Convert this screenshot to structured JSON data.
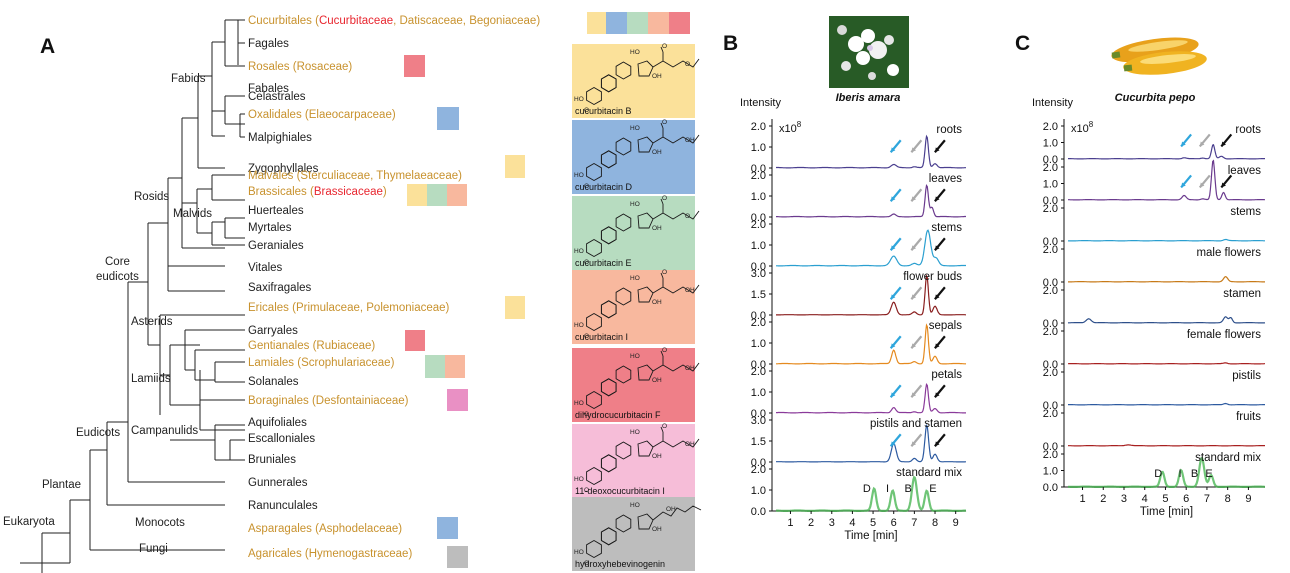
{
  "panels": {
    "a": "A",
    "b": "B",
    "c": "C"
  },
  "colors": {
    "order": "#c8922e",
    "family": "#e8262f",
    "tree": "#222222",
    "cuc_b": "#fbe19a",
    "cuc_d": "#8fb4de",
    "cuc_e": "#b7dcc0",
    "cuc_i": "#f8b89e",
    "dihydro_f": "#ef7f88",
    "deoxo_i": "#f6bdd8",
    "hebevinogenin": "#bdbdbd",
    "boraginales": "#e990c4",
    "blue_arrow": "#2fa6dc",
    "gray_arrow": "#aaaaaa",
    "black_arrow": "#111111"
  },
  "tree": {
    "orders": {
      "cucurbitales": "Cucurbitales",
      "fagales": "Fagales",
      "rosales": "Rosales",
      "fabales": "Fabales",
      "celastrales": "Celastrales",
      "oxalidales": "Oxalidales",
      "malpighiales": "Malpighiales",
      "zygophyllales": "Zygophyllales",
      "malvales": "Malvales",
      "brassicales": "Brassicales",
      "huerteales": "Huerteales",
      "myrtales": "Myrtales",
      "geraniales": "Geraniales",
      "vitales": "Vitales",
      "saxifragales": "Saxifragales",
      "ericales": "Ericales",
      "garryales": "Garryales",
      "gentianales": "Gentianales",
      "lamiales": "Lamiales",
      "solanales": "Solanales",
      "boraginales": "Boraginales",
      "aquifoliales": "Aquifoliales",
      "escalloniales": "Escalloniales",
      "bruniales": "Bruniales",
      "gunnerales": "Gunnerales",
      "ranunculales": "Ranunculales",
      "asparagales": "Asparagales",
      "agaricales": "Agaricales"
    },
    "families": {
      "cucurbitaceae": "Cucurbitaceae",
      "datiscaceae": "Datiscaceae",
      "begoniaceae": "Begoniaceae",
      "rosaceae": "(Rosaceae)",
      "elaeocarpaceae": "(Elaeocarpaceae)",
      "sterculiaceae": "(Sterculiaceae, Thymelaeaceae)",
      "brassicaceae": "Brassicaceae",
      "primulaceae": "(Primulaceae, Polemoniaceae)",
      "rubiaceae": "(Rubiaceae)",
      "scrophulariaceae": "(Scrophulariaceae)",
      "desfontainiaceae": "(Desfontainiaceae)",
      "asphodelaceae": "(Asphodelaceae)",
      "hymenogastraceae": "(Hymenogastraceae)"
    },
    "clades": {
      "fabids": "Fabids",
      "rosids": "Rosids",
      "malvids": "Malvids",
      "core": "Core",
      "eudicots_core": "eudicots",
      "asterids": "Asterids",
      "lamiids": "Lamiids",
      "campanulids": "Campanulids",
      "eudicots": "Eudicots",
      "plantae": "Plantae",
      "eukaryota": "Eukaryota",
      "monocots": "Monocots",
      "fungi": "Fungi"
    }
  },
  "compounds": {
    "b": "cucurbitacin B",
    "d": "cucurbitacin D",
    "e": "cucurbitacin E",
    "i": "cucurbitacin I",
    "f": "dihydrocucurbitacin F",
    "deoxo": "11-deoxocucurbitacin I",
    "hebevinogenin": "hydroxyhebevinogenin",
    "oh": "OH",
    "ho": "HO",
    "o": "O"
  },
  "chart_data": [
    {
      "type": "line",
      "title": "Iberis amara",
      "ylabel": "Intensity",
      "y_multiplier": "x10",
      "y_multiplier_exp": "8",
      "xlabel": "Time [min]",
      "xticks": [
        "1",
        "2",
        "3",
        "4",
        "5",
        "6",
        "7",
        "8",
        "9"
      ],
      "xlim": [
        0.3,
        9.5
      ],
      "series": [
        {
          "name": "roots",
          "ylim": [
            0,
            2.0
          ],
          "yticks": [
            "2.0",
            "1.0",
            "0.0"
          ],
          "color": "#4a3f8f",
          "peaks": [
            [
              6.0,
              0.15,
              0.12
            ],
            [
              7.0,
              0.05,
              0.1
            ],
            [
              7.6,
              1.5,
              0.08
            ],
            [
              8.0,
              0.2,
              0.1
            ]
          ]
        },
        {
          "name": "leaves",
          "ylim": [
            0,
            2.0
          ],
          "yticks": [
            "2.0",
            "1.0",
            "0.0"
          ],
          "color": "#6a3a8e",
          "peaks": [
            [
              6.0,
              0.12,
              0.1
            ],
            [
              7.6,
              1.5,
              0.08
            ],
            [
              7.85,
              0.45,
              0.08
            ]
          ]
        },
        {
          "name": "stems",
          "ylim": [
            0,
            2.0
          ],
          "yticks": [
            "2.0",
            "1.0",
            "0.0"
          ],
          "color": "#2a9fd0",
          "peaks": [
            [
              6.0,
              0.45,
              0.15
            ],
            [
              7.0,
              0.1,
              0.12
            ],
            [
              7.65,
              1.7,
              0.14
            ],
            [
              8.05,
              0.35,
              0.12
            ]
          ]
        },
        {
          "name": "flower buds",
          "ylim": [
            0,
            3.0
          ],
          "yticks": [
            "3.0",
            "1.5",
            "0.0"
          ],
          "color": "#8a1f1f",
          "peaks": [
            [
              6.0,
              0.9,
              0.12
            ],
            [
              7.0,
              0.2,
              0.1
            ],
            [
              7.6,
              2.8,
              0.08
            ],
            [
              8.0,
              0.6,
              0.1
            ]
          ]
        },
        {
          "name": "sepals",
          "ylim": [
            0,
            2.0
          ],
          "yticks": [
            "2.0",
            "1.0",
            "0.0"
          ],
          "color": "#e58a1f",
          "peaks": [
            [
              6.0,
              0.65,
              0.1
            ],
            [
              7.0,
              0.1,
              0.1
            ],
            [
              7.6,
              1.85,
              0.08
            ],
            [
              8.0,
              0.35,
              0.1
            ]
          ]
        },
        {
          "name": "petals",
          "ylim": [
            0,
            2.0
          ],
          "yticks": [
            "2.0",
            "1.0",
            "0.0"
          ],
          "color": "#8a3a9a",
          "peaks": [
            [
              6.0,
              0.25,
              0.1
            ],
            [
              7.0,
              0.05,
              0.1
            ],
            [
              7.6,
              1.35,
              0.08
            ],
            [
              8.0,
              0.2,
              0.1
            ]
          ]
        },
        {
          "name": "pistils and stamen",
          "ylim": [
            0,
            3.0
          ],
          "yticks": [
            "3.0",
            "1.5",
            "0.0"
          ],
          "color": "#2d5aa0",
          "peaks": [
            [
              6.0,
              1.3,
              0.12
            ],
            [
              7.0,
              0.25,
              0.1
            ],
            [
              7.6,
              2.6,
              0.09
            ],
            [
              8.0,
              0.55,
              0.1
            ]
          ]
        },
        {
          "name": "standard mix",
          "ylim": [
            0,
            2.0
          ],
          "yticks": [
            "2.0",
            "1.0",
            "0.0"
          ],
          "color": "#3fb24a",
          "peaks": [
            [
              5.05,
              1.05,
              0.1
            ],
            [
              5.95,
              0.95,
              0.1
            ],
            [
              7.0,
              1.6,
              0.12
            ],
            [
              7.6,
              0.95,
              0.1
            ]
          ],
          "peak_labels": [
            {
              "label": "D",
              "x": 4.7
            },
            {
              "label": "I",
              "x": 5.7
            },
            {
              "label": "B",
              "x": 6.7
            },
            {
              "label": "E",
              "x": 7.9
            }
          ]
        }
      ],
      "arrows": {
        "blue": {
          "x": 6.0,
          "series": [
            "roots",
            "leaves",
            "stems",
            "flower buds",
            "sepals",
            "petals",
            "pistils and stamen"
          ]
        },
        "gray": {
          "x": 7.0,
          "series": [
            "roots",
            "leaves",
            "stems",
            "flower buds",
            "sepals",
            "petals",
            "pistils and stamen"
          ]
        },
        "black": {
          "x": 7.8,
          "series": [
            "roots",
            "leaves",
            "stems",
            "flower buds",
            "sepals",
            "petals",
            "pistils and stamen"
          ]
        }
      }
    },
    {
      "type": "line",
      "title": "Cucurbita pepo",
      "ylabel": "Intensity",
      "y_multiplier": "x10",
      "y_multiplier_exp": "8",
      "xlabel": "Time [min]",
      "xticks": [
        "1",
        "2",
        "3",
        "4",
        "5",
        "6",
        "7",
        "8",
        "9"
      ],
      "xlim": [
        0.3,
        9.8
      ],
      "series": [
        {
          "name": "roots",
          "ylim": [
            0,
            2.0
          ],
          "yticks": [
            "2.0",
            "1.0",
            "0.0"
          ],
          "color": "#4a3f8f",
          "peaks": [
            [
              5.9,
              0.06,
              0.1
            ],
            [
              6.8,
              0.05,
              0.1
            ],
            [
              7.3,
              0.85,
              0.08
            ],
            [
              7.7,
              0.15,
              0.1
            ]
          ]
        },
        {
          "name": "leaves",
          "ylim": [
            0,
            2.0
          ],
          "yticks": [
            "2.0",
            "1.0",
            "0.0"
          ],
          "color": "#6a3a8e",
          "peaks": [
            [
              5.9,
              0.25,
              0.1
            ],
            [
              6.8,
              0.06,
              0.1
            ],
            [
              7.3,
              2.4,
              0.08
            ],
            [
              7.8,
              0.45,
              0.08
            ]
          ]
        },
        {
          "name": "stems",
          "ylim": [
            0,
            2.0
          ],
          "yticks": [
            "2.0",
            "0.0"
          ],
          "color": "#2a9fd0",
          "peaks": [
            [
              7.9,
              0.08,
              0.1
            ]
          ]
        },
        {
          "name": "male flowers",
          "ylim": [
            0,
            2.0
          ],
          "yticks": [
            "2.0",
            "0.0"
          ],
          "color": "#c77a18",
          "peaks": [
            [
              7.9,
              0.3,
              0.1
            ]
          ]
        },
        {
          "name": "stamen",
          "ylim": [
            0,
            2.0
          ],
          "yticks": [
            "2.0",
            "0.0"
          ],
          "color": "#2d4f8a",
          "peaks": [
            [
              1.3,
              0.25,
              0.12
            ],
            [
              7.9,
              0.35,
              0.1
            ],
            [
              8.15,
              0.3,
              0.08
            ]
          ]
        },
        {
          "name": "female flowers",
          "ylim": [
            0,
            2.0
          ],
          "yticks": [
            "2.0",
            "0.0"
          ],
          "color": "#a82020",
          "peaks": [
            [
              7.9,
              0.05,
              0.1
            ]
          ]
        },
        {
          "name": "pistils",
          "ylim": [
            0,
            2.0
          ],
          "yticks": [
            "2.0",
            "0.0"
          ],
          "color": "#2d5aa0",
          "peaks": [
            [
              7.9,
              0.08,
              0.1
            ]
          ]
        },
        {
          "name": "fruits",
          "ylim": [
            0,
            2.0
          ],
          "yticks": [
            "2.0",
            "0.0"
          ],
          "color": "#a82020",
          "peaks": [
            [
              3.2,
              0.06,
              0.15
            ]
          ]
        },
        {
          "name": "standard mix",
          "ylim": [
            0,
            2.0
          ],
          "yticks": [
            "2.0",
            "1.0",
            "0.0"
          ],
          "color": "#3fb24a",
          "peaks": [
            [
              4.85,
              0.9,
              0.1
            ],
            [
              5.75,
              1.0,
              0.1
            ],
            [
              6.75,
              1.75,
              0.12
            ],
            [
              7.2,
              0.7,
              0.1
            ]
          ],
          "peak_labels": [
            {
              "label": "D",
              "x": 4.65
            },
            {
              "label": "I",
              "x": 5.7
            },
            {
              "label": "B",
              "x": 6.4
            },
            {
              "label": "E",
              "x": 7.1
            }
          ]
        }
      ],
      "arrows": {
        "blue": {
          "x": 5.9,
          "series": [
            "roots",
            "leaves"
          ]
        },
        "gray": {
          "x": 6.8,
          "series": [
            "roots",
            "leaves"
          ]
        },
        "black": {
          "x": 7.5,
          "series": [
            "roots",
            "leaves"
          ]
        }
      }
    }
  ]
}
